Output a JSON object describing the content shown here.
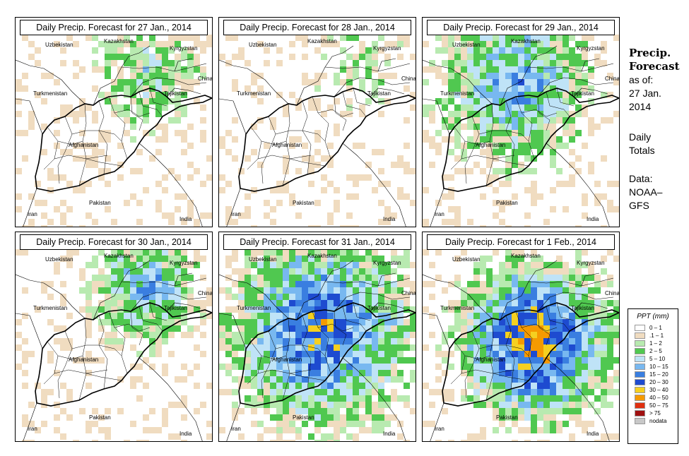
{
  "panels": [
    {
      "title": "Daily Precip. Forecast for  27 Jan., 2014",
      "intensity": 0.35,
      "seed": 11,
      "zone": "north"
    },
    {
      "title": "Daily Precip. Forecast for  28 Jan., 2014",
      "intensity": 0.2,
      "seed": 23,
      "zone": "northeast"
    },
    {
      "title": "Daily Precip. Forecast for  29 Jan., 2014",
      "intensity": 0.6,
      "seed": 37,
      "zone": "north-wide"
    },
    {
      "title": "Daily Precip. Forecast for  30 Jan., 2014",
      "intensity": 0.55,
      "seed": 41,
      "zone": "north"
    },
    {
      "title": "Daily Precip. Forecast for  31 Jan., 2014",
      "intensity": 0.8,
      "seed": 53,
      "zone": "wide"
    },
    {
      "title": "Daily Precip. Forecast for  1 Feb., 2014",
      "intensity": 0.95,
      "seed": 67,
      "zone": "central"
    }
  ],
  "map_labels": [
    "Kazakhstan",
    "Uzbekistan",
    "Kyrgyzstan",
    "China",
    "Tajikistan",
    "Turkmenistan",
    "Afghanistan",
    "Pakistan",
    "Iran",
    "India"
  ],
  "side": {
    "title_line1": "Precip.",
    "title_line2": "Forecast",
    "asof": "as of:",
    "date_line1": "27 Jan.",
    "date_line2": "2014",
    "totals_line1": "Daily",
    "totals_line2": "Totals",
    "data_line1": "Data:",
    "data_line2": "NOAA–",
    "data_line3": "GFS"
  },
  "legend": {
    "title": "PPT (mm)",
    "items": [
      {
        "label": "0 – 1",
        "color": "#ffffff"
      },
      {
        "label": ".1 – 1",
        "color": "#f0dcc0"
      },
      {
        "label": "1 – 2",
        "color": "#b8eab0"
      },
      {
        "label": "2 – 5",
        "color": "#50c850"
      },
      {
        "label": "5 – 10",
        "color": "#bfe3f7"
      },
      {
        "label": "10 – 15",
        "color": "#78b8f0"
      },
      {
        "label": "15 – 20",
        "color": "#3a7ee0"
      },
      {
        "label": "20 – 30",
        "color": "#1e4bd0"
      },
      {
        "label": "30 – 40",
        "color": "#f5d020"
      },
      {
        "label": "40 – 50",
        "color": "#f59a00"
      },
      {
        "label": "50 – 75",
        "color": "#e03010"
      },
      {
        "label": "> 75",
        "color": "#a01010"
      },
      {
        "label": "nodata",
        "color": "#c8c8c8"
      }
    ]
  }
}
